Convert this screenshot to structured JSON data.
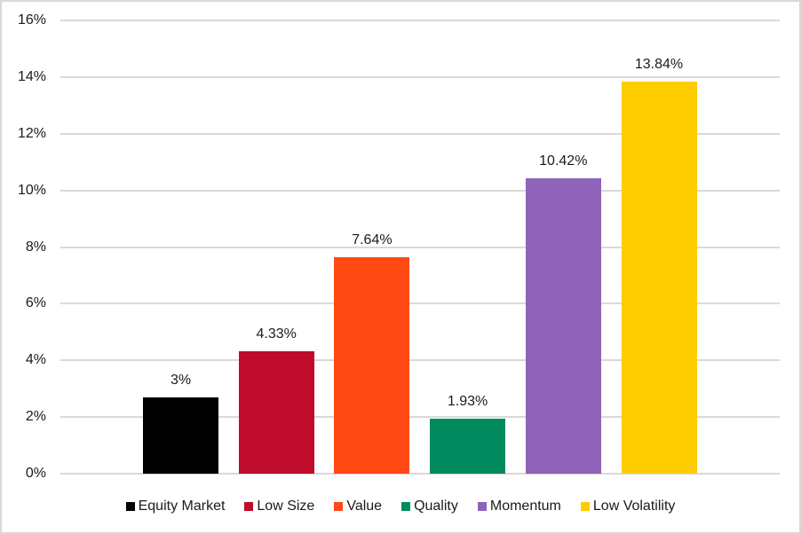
{
  "chart_data": {
    "type": "bar",
    "title": "",
    "xlabel": "",
    "ylabel": "",
    "ylim": [
      0,
      16
    ],
    "yticks": [
      "0%",
      "2%",
      "4%",
      "6%",
      "8%",
      "10%",
      "12%",
      "14%",
      "16%"
    ],
    "grid": true,
    "legend_position": "bottom",
    "categories": [
      "Equity Market",
      "Low Size",
      "Value",
      "Quality",
      "Momentum",
      "Low Volatility"
    ],
    "values": [
      3,
      4.33,
      7.64,
      1.93,
      10.42,
      13.84
    ],
    "data_labels": [
      "3%",
      "4.33%",
      "7.64%",
      "1.93%",
      "10.42%",
      "13.84%"
    ],
    "colors": [
      "#000000",
      "#c00c2c",
      "#ff4a13",
      "#008a5d",
      "#8f63ba",
      "#ffcc00"
    ]
  },
  "legend": [
    {
      "label": "Equity Market",
      "color": "#000000"
    },
    {
      "label": "Low Size",
      "color": "#c00c2c"
    },
    {
      "label": "Value",
      "color": "#ff4a13"
    },
    {
      "label": "Quality",
      "color": "#008a5d"
    },
    {
      "label": "Momentum",
      "color": "#8f63ba"
    },
    {
      "label": "Low Volatility",
      "color": "#ffcc00"
    }
  ]
}
